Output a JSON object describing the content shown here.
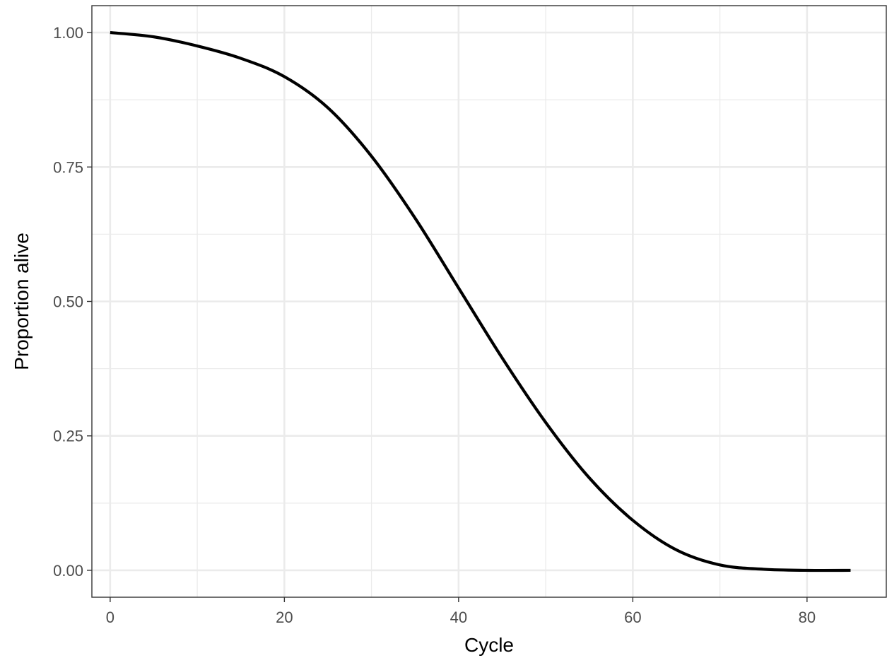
{
  "chart_data": {
    "type": "line",
    "xlabel": "Cycle",
    "ylabel": "Proportion alive",
    "xlim": [
      -2.1,
      89.1
    ],
    "ylim": [
      -0.05,
      1.05
    ],
    "x_ticks": [
      0,
      20,
      40,
      60,
      80
    ],
    "x_tick_labels": [
      "0",
      "20",
      "40",
      "60",
      "80"
    ],
    "y_ticks": [
      0,
      0.25,
      0.5,
      0.75,
      1.0
    ],
    "y_tick_labels": [
      "0.00",
      "0.25",
      "0.50",
      "0.75",
      "1.00"
    ],
    "grid": true,
    "legend": "none",
    "series": [
      {
        "color": "#000000",
        "x": [
          0,
          5,
          10,
          15,
          20,
          25,
          30,
          35,
          40,
          45,
          50,
          55,
          60,
          65,
          70,
          75,
          80,
          85
        ],
        "y": [
          1.0,
          0.992,
          0.975,
          0.952,
          0.918,
          0.86,
          0.77,
          0.655,
          0.525,
          0.395,
          0.275,
          0.172,
          0.093,
          0.038,
          0.01,
          0.002,
          0.0,
          0.0
        ]
      }
    ]
  }
}
